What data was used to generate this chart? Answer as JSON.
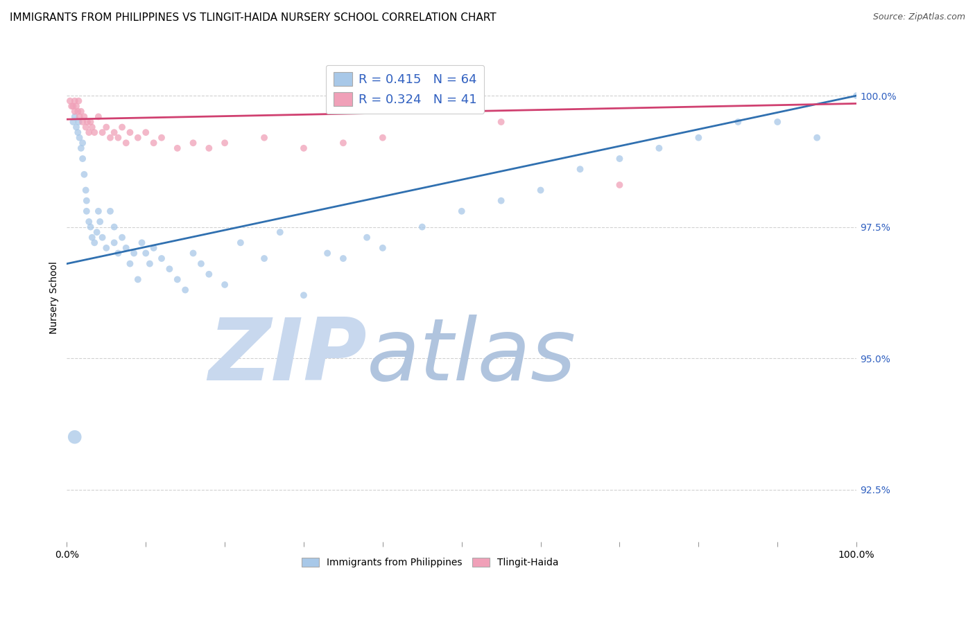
{
  "title": "IMMIGRANTS FROM PHILIPPINES VS TLINGIT-HAIDA NURSERY SCHOOL CORRELATION CHART",
  "source": "Source: ZipAtlas.com",
  "ylabel": "Nursery School",
  "ylabel_right_ticks": [
    "92.5%",
    "95.0%",
    "97.5%",
    "100.0%"
  ],
  "ylabel_right_values": [
    92.5,
    95.0,
    97.5,
    100.0
  ],
  "xlim": [
    0.0,
    100.0
  ],
  "ylim": [
    91.5,
    100.8
  ],
  "legend_blue_r": "0.415",
  "legend_blue_n": "64",
  "legend_pink_r": "0.324",
  "legend_pink_n": "41",
  "blue_color": "#A8C8E8",
  "pink_color": "#F0A0B8",
  "blue_line_color": "#3070B0",
  "pink_line_color": "#D04070",
  "blue_line_y_start": 96.8,
  "blue_line_y_end": 100.0,
  "pink_line_y_start": 99.55,
  "pink_line_y_end": 99.85,
  "grid_color": "#CCCCCC",
  "background_color": "#FFFFFF",
  "title_fontsize": 11,
  "axis_label_fontsize": 10,
  "tick_fontsize": 10,
  "source_fontsize": 9,
  "blue_scatter_x": [
    0.8,
    1.0,
    1.2,
    1.4,
    1.5,
    1.6,
    1.8,
    2.0,
    2.0,
    2.2,
    2.4,
    2.5,
    2.5,
    2.8,
    3.0,
    3.2,
    3.5,
    3.8,
    4.0,
    4.2,
    4.5,
    5.0,
    5.5,
    6.0,
    6.0,
    6.5,
    7.0,
    7.5,
    8.0,
    8.5,
    9.0,
    9.5,
    10.0,
    10.5,
    11.0,
    12.0,
    13.0,
    14.0,
    15.0,
    16.0,
    17.0,
    18.0,
    20.0,
    22.0,
    25.0,
    27.0,
    30.0,
    33.0,
    35.0,
    38.0,
    40.0,
    45.0,
    50.0,
    55.0,
    60.0,
    65.0,
    70.0,
    75.0,
    80.0,
    85.0,
    90.0,
    95.0,
    100.0,
    1.0
  ],
  "blue_scatter_y": [
    99.5,
    99.6,
    99.4,
    99.3,
    99.5,
    99.2,
    99.0,
    98.8,
    99.1,
    98.5,
    98.2,
    98.0,
    97.8,
    97.6,
    97.5,
    97.3,
    97.2,
    97.4,
    97.8,
    97.6,
    97.3,
    97.1,
    97.8,
    97.5,
    97.2,
    97.0,
    97.3,
    97.1,
    96.8,
    97.0,
    96.5,
    97.2,
    97.0,
    96.8,
    97.1,
    96.9,
    96.7,
    96.5,
    96.3,
    97.0,
    96.8,
    96.6,
    96.4,
    97.2,
    96.9,
    97.4,
    96.2,
    97.0,
    96.9,
    97.3,
    97.1,
    97.5,
    97.8,
    98.0,
    98.2,
    98.6,
    98.8,
    99.0,
    99.2,
    99.5,
    99.5,
    99.2,
    100.0,
    93.5
  ],
  "blue_scatter_sizes": [
    50,
    50,
    50,
    50,
    50,
    50,
    50,
    50,
    50,
    50,
    50,
    50,
    50,
    50,
    50,
    50,
    50,
    50,
    50,
    50,
    50,
    50,
    50,
    50,
    50,
    50,
    50,
    50,
    50,
    50,
    50,
    50,
    50,
    50,
    50,
    50,
    50,
    50,
    50,
    50,
    50,
    50,
    50,
    50,
    50,
    50,
    50,
    50,
    50,
    50,
    50,
    50,
    50,
    50,
    50,
    50,
    50,
    50,
    50,
    50,
    50,
    50,
    50,
    200
  ],
  "pink_scatter_x": [
    0.4,
    0.6,
    0.8,
    1.0,
    1.0,
    1.2,
    1.4,
    1.5,
    1.6,
    1.8,
    2.0,
    2.2,
    2.4,
    2.6,
    2.8,
    3.0,
    3.2,
    3.5,
    4.0,
    4.5,
    5.0,
    5.5,
    6.0,
    6.5,
    7.0,
    7.5,
    8.0,
    9.0,
    10.0,
    11.0,
    12.0,
    14.0,
    16.0,
    18.0,
    20.0,
    25.0,
    30.0,
    35.0,
    40.0,
    55.0,
    70.0
  ],
  "pink_scatter_y": [
    99.9,
    99.8,
    99.8,
    99.9,
    99.7,
    99.8,
    99.7,
    99.9,
    99.6,
    99.7,
    99.5,
    99.6,
    99.4,
    99.5,
    99.3,
    99.5,
    99.4,
    99.3,
    99.6,
    99.3,
    99.4,
    99.2,
    99.3,
    99.2,
    99.4,
    99.1,
    99.3,
    99.2,
    99.3,
    99.1,
    99.2,
    99.0,
    99.1,
    99.0,
    99.1,
    99.2,
    99.0,
    99.1,
    99.2,
    99.5,
    98.3
  ],
  "pink_scatter_sizes": [
    50,
    50,
    50,
    50,
    50,
    50,
    50,
    50,
    50,
    50,
    50,
    50,
    50,
    50,
    50,
    50,
    50,
    50,
    50,
    50,
    50,
    50,
    50,
    50,
    50,
    50,
    50,
    50,
    50,
    50,
    50,
    50,
    50,
    50,
    50,
    50,
    50,
    50,
    50,
    50,
    50
  ]
}
